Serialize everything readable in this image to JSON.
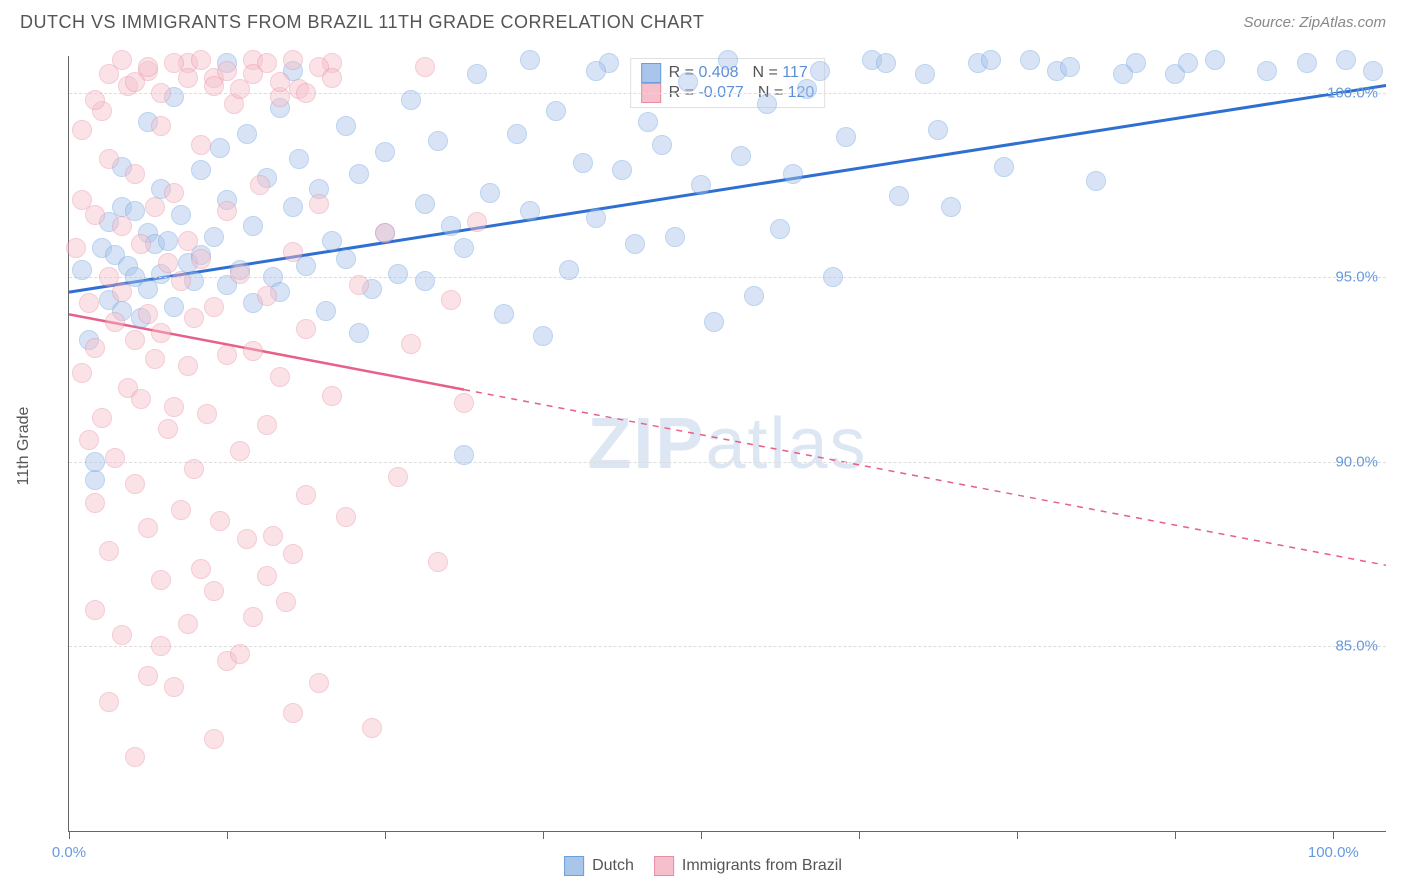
{
  "header": {
    "title": "DUTCH VS IMMIGRANTS FROM BRAZIL 11TH GRADE CORRELATION CHART",
    "source": "Source: ZipAtlas.com"
  },
  "watermark": {
    "bold": "ZIP",
    "rest": "atlas"
  },
  "chart": {
    "type": "scatter",
    "y_axis_label": "11th Grade",
    "background_color": "#ffffff",
    "grid_color": "#dddddd",
    "axis_color": "#666666",
    "tick_label_color": "#6699dd",
    "xlim": [
      0,
      100
    ],
    "ylim": [
      80,
      101
    ],
    "y_ticks": [
      85.0,
      90.0,
      95.0,
      100.0
    ],
    "y_tick_labels": [
      "85.0%",
      "90.0%",
      "95.0%",
      "100.0%"
    ],
    "x_ticks": [
      0,
      12,
      24,
      36,
      48,
      60,
      72,
      84,
      96
    ],
    "x_tick_labels": {
      "0": "0.0%",
      "96": "100.0%"
    },
    "point_radius": 10,
    "point_opacity": 0.45,
    "series": [
      {
        "name": "Dutch",
        "fill_color": "#a9c5ea",
        "stroke_color": "#6a9fde",
        "trend_color": "#2e6fd1",
        "trend_width": 3,
        "R": "0.408",
        "N": "117",
        "trend": {
          "x1": 0,
          "y1": 94.6,
          "x2": 100,
          "y2": 100.2,
          "dash_after_x": 100
        },
        "points": [
          [
            1,
            95.2
          ],
          [
            1.5,
            93.3
          ],
          [
            2,
            89.5
          ],
          [
            2.5,
            95.8
          ],
          [
            3,
            96.5
          ],
          [
            3,
            94.4
          ],
          [
            3.5,
            95.6
          ],
          [
            4,
            96.9
          ],
          [
            4,
            94.1
          ],
          [
            4.5,
            95.3
          ],
          [
            5,
            96.8
          ],
          [
            5,
            95.0
          ],
          [
            5.5,
            93.9
          ],
          [
            6,
            96.2
          ],
          [
            6,
            94.7
          ],
          [
            6.5,
            95.9
          ],
          [
            7,
            97.4
          ],
          [
            7,
            95.1
          ],
          [
            7.5,
            96.0
          ],
          [
            8,
            94.2
          ],
          [
            8.5,
            96.7
          ],
          [
            9,
            95.4
          ],
          [
            9.5,
            94.9
          ],
          [
            10,
            97.9
          ],
          [
            10,
            95.6
          ],
          [
            11,
            96.1
          ],
          [
            11.5,
            98.5
          ],
          [
            12,
            94.8
          ],
          [
            12,
            97.1
          ],
          [
            13,
            95.2
          ],
          [
            13.5,
            98.9
          ],
          [
            14,
            94.3
          ],
          [
            14,
            96.4
          ],
          [
            15,
            97.7
          ],
          [
            15.5,
            95.0
          ],
          [
            16,
            99.6
          ],
          [
            16,
            94.6
          ],
          [
            17,
            96.9
          ],
          [
            17.5,
            98.2
          ],
          [
            18,
            95.3
          ],
          [
            19,
            97.4
          ],
          [
            19.5,
            94.1
          ],
          [
            20,
            96.0
          ],
          [
            21,
            99.1
          ],
          [
            21,
            95.5
          ],
          [
            22,
            97.8
          ],
          [
            23,
            94.7
          ],
          [
            24,
            98.4
          ],
          [
            24,
            96.2
          ],
          [
            25,
            95.1
          ],
          [
            26,
            99.8
          ],
          [
            27,
            97.0
          ],
          [
            27,
            94.9
          ],
          [
            28,
            98.7
          ],
          [
            29,
            96.4
          ],
          [
            30,
            95.8
          ],
          [
            31,
            100.5
          ],
          [
            32,
            97.3
          ],
          [
            33,
            94.0
          ],
          [
            34,
            98.9
          ],
          [
            35,
            96.8
          ],
          [
            36,
            93.4
          ],
          [
            37,
            99.5
          ],
          [
            38,
            95.2
          ],
          [
            39,
            98.1
          ],
          [
            40,
            96.6
          ],
          [
            41,
            100.8
          ],
          [
            42,
            97.9
          ],
          [
            43,
            95.9
          ],
          [
            44,
            99.2
          ],
          [
            45,
            98.6
          ],
          [
            46,
            96.1
          ],
          [
            47,
            100.3
          ],
          [
            48,
            97.5
          ],
          [
            49,
            93.8
          ],
          [
            50,
            100.9
          ],
          [
            51,
            98.3
          ],
          [
            52,
            94.5
          ],
          [
            53,
            99.7
          ],
          [
            54,
            96.3
          ],
          [
            55,
            97.8
          ],
          [
            57,
            100.6
          ],
          [
            58,
            95.0
          ],
          [
            59,
            98.8
          ],
          [
            61,
            100.9
          ],
          [
            63,
            97.2
          ],
          [
            65,
            100.5
          ],
          [
            67,
            96.9
          ],
          [
            69,
            100.8
          ],
          [
            71,
            98.0
          ],
          [
            73,
            100.9
          ],
          [
            75,
            100.6
          ],
          [
            78,
            97.6
          ],
          [
            81,
            100.8
          ],
          [
            84,
            100.5
          ],
          [
            87,
            100.9
          ],
          [
            91,
            100.6
          ],
          [
            94,
            100.8
          ],
          [
            97,
            100.9
          ],
          [
            99,
            100.6
          ],
          [
            2,
            90.0
          ],
          [
            30,
            90.2
          ],
          [
            12,
            100.8
          ],
          [
            35,
            100.9
          ],
          [
            40,
            100.6
          ],
          [
            22,
            93.5
          ],
          [
            17,
            100.6
          ],
          [
            8,
            99.9
          ],
          [
            6,
            99.2
          ],
          [
            4,
            98.0
          ],
          [
            56,
            100.1
          ],
          [
            62,
            100.8
          ],
          [
            66,
            99.0
          ],
          [
            70,
            100.9
          ],
          [
            76,
            100.7
          ],
          [
            80,
            100.5
          ],
          [
            85,
            100.8
          ]
        ]
      },
      {
        "name": "Immigrants from Brazil",
        "fill_color": "#f5c0cc",
        "stroke_color": "#e88da3",
        "trend_color": "#e85f88",
        "trend_width": 2.5,
        "R": "-0.077",
        "N": "120",
        "trend": {
          "x1": 0,
          "y1": 94.0,
          "x2": 100,
          "y2": 87.2,
          "dash_after_x": 30
        },
        "points": [
          [
            0.5,
            95.8
          ],
          [
            1,
            92.4
          ],
          [
            1,
            97.1
          ],
          [
            1.5,
            90.6
          ],
          [
            1.5,
            94.3
          ],
          [
            2,
            96.7
          ],
          [
            2,
            88.9
          ],
          [
            2,
            93.1
          ],
          [
            2.5,
            99.5
          ],
          [
            2.5,
            91.2
          ],
          [
            3,
            95.0
          ],
          [
            3,
            87.6
          ],
          [
            3,
            98.2
          ],
          [
            3.5,
            93.8
          ],
          [
            3.5,
            90.1
          ],
          [
            4,
            96.4
          ],
          [
            4,
            85.3
          ],
          [
            4,
            94.6
          ],
          [
            4.5,
            92.0
          ],
          [
            4.5,
            100.2
          ],
          [
            5,
            89.4
          ],
          [
            5,
            97.8
          ],
          [
            5,
            93.3
          ],
          [
            5.5,
            91.7
          ],
          [
            5.5,
            95.9
          ],
          [
            6,
            88.2
          ],
          [
            6,
            100.6
          ],
          [
            6,
            94.0
          ],
          [
            6.5,
            92.8
          ],
          [
            6.5,
            96.9
          ],
          [
            7,
            86.8
          ],
          [
            7,
            99.1
          ],
          [
            7,
            93.5
          ],
          [
            7.5,
            90.9
          ],
          [
            7.5,
            95.4
          ],
          [
            8,
            83.9
          ],
          [
            8,
            97.3
          ],
          [
            8,
            91.5
          ],
          [
            8.5,
            94.9
          ],
          [
            8.5,
            88.7
          ],
          [
            9,
            100.8
          ],
          [
            9,
            92.6
          ],
          [
            9,
            96.0
          ],
          [
            9.5,
            89.8
          ],
          [
            9.5,
            93.9
          ],
          [
            10,
            87.1
          ],
          [
            10,
            98.6
          ],
          [
            10,
            95.5
          ],
          [
            10.5,
            91.3
          ],
          [
            11,
            82.5
          ],
          [
            11,
            100.4
          ],
          [
            11,
            94.2
          ],
          [
            11.5,
            88.4
          ],
          [
            12,
            96.8
          ],
          [
            12,
            84.6
          ],
          [
            12,
            92.9
          ],
          [
            12.5,
            99.7
          ],
          [
            13,
            90.3
          ],
          [
            13,
            95.1
          ],
          [
            13.5,
            87.9
          ],
          [
            14,
            93.0
          ],
          [
            14,
            100.9
          ],
          [
            14,
            85.8
          ],
          [
            14.5,
            97.5
          ],
          [
            15,
            91.0
          ],
          [
            15,
            94.5
          ],
          [
            15.5,
            88.0
          ],
          [
            16,
            99.9
          ],
          [
            16,
            92.3
          ],
          [
            16.5,
            86.2
          ],
          [
            17,
            95.7
          ],
          [
            17,
            83.2
          ],
          [
            17.5,
            100.1
          ],
          [
            18,
            89.1
          ],
          [
            18,
            93.6
          ],
          [
            19,
            97.0
          ],
          [
            19,
            84.0
          ],
          [
            20,
            91.8
          ],
          [
            20,
            100.8
          ],
          [
            21,
            88.5
          ],
          [
            22,
            94.8
          ],
          [
            23,
            82.8
          ],
          [
            24,
            96.2
          ],
          [
            25,
            89.6
          ],
          [
            26,
            93.2
          ],
          [
            27,
            100.7
          ],
          [
            28,
            87.3
          ],
          [
            29,
            94.4
          ],
          [
            30,
            91.6
          ],
          [
            31,
            96.5
          ],
          [
            5,
            82.0
          ],
          [
            6,
            84.2
          ],
          [
            7,
            85.0
          ],
          [
            3,
            83.5
          ],
          [
            2,
            86.0
          ],
          [
            11,
            86.5
          ],
          [
            13,
            84.8
          ],
          [
            9,
            85.6
          ],
          [
            15,
            86.9
          ],
          [
            17,
            87.5
          ],
          [
            1,
            99.0
          ],
          [
            2,
            99.8
          ],
          [
            3,
            100.5
          ],
          [
            4,
            100.9
          ],
          [
            5,
            100.3
          ],
          [
            6,
            100.7
          ],
          [
            7,
            100.0
          ],
          [
            8,
            100.8
          ],
          [
            9,
            100.4
          ],
          [
            10,
            100.9
          ],
          [
            11,
            100.2
          ],
          [
            12,
            100.6
          ],
          [
            13,
            100.1
          ],
          [
            14,
            100.5
          ],
          [
            15,
            100.8
          ],
          [
            16,
            100.3
          ],
          [
            17,
            100.9
          ],
          [
            18,
            100.0
          ],
          [
            19,
            100.7
          ],
          [
            20,
            100.4
          ]
        ]
      }
    ],
    "legend_top": {
      "r_label": "R =",
      "n_label": "N ="
    },
    "legend_bottom": [
      {
        "label": "Dutch",
        "fill": "#a9c5ea",
        "stroke": "#6a9fde"
      },
      {
        "label": "Immigrants from Brazil",
        "fill": "#f5c0cc",
        "stroke": "#e88da3"
      }
    ]
  }
}
